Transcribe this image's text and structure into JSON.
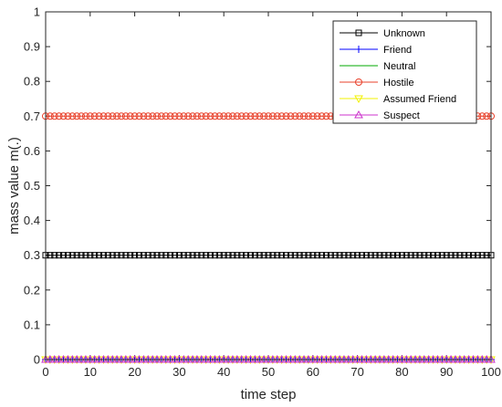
{
  "chart_data": {
    "type": "line",
    "title": "",
    "xlabel": "time step",
    "ylabel": "mass value m(.)",
    "xlim": [
      0,
      100
    ],
    "ylim": [
      0,
      1
    ],
    "xticks": [
      0,
      10,
      20,
      30,
      40,
      50,
      60,
      70,
      80,
      90,
      100
    ],
    "yticks": [
      0,
      0.1,
      0.2,
      0.3,
      0.4,
      0.5,
      0.6,
      0.7,
      0.8,
      0.9,
      1
    ],
    "grid": false,
    "legend_position": "top-right",
    "series": [
      {
        "name": "Unknown",
        "color": "#000000",
        "marker": "square",
        "y_constant": 0.3
      },
      {
        "name": "Friend",
        "color": "#0000ff",
        "marker": "plus",
        "y_constant": 0.0
      },
      {
        "name": "Neutral",
        "color": "#00aa00",
        "marker": "none",
        "y_constant": 0.0
      },
      {
        "name": "Hostile",
        "color": "#e8412b",
        "marker": "circle",
        "y_constant": 0.7
      },
      {
        "name": "Assumed Friend",
        "color": "#f2f200",
        "marker": "triangle-down",
        "y_constant": 0.0
      },
      {
        "name": "Suspect",
        "color": "#cc33cc",
        "marker": "triangle-up",
        "y_constant": 0.0
      }
    ]
  }
}
